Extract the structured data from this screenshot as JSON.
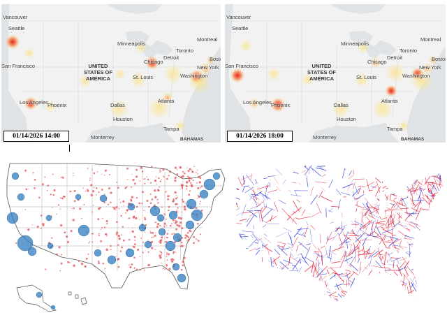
{
  "top_maps": [
    {
      "timestamp": "01/14/2026 14:00",
      "labels": {
        "vancouver": "Vancouver",
        "seattle": "Seattle",
        "san_francisco": "San Francisco",
        "los_angeles": "Los Angeles",
        "phoenix": "Phoenix",
        "minneapolis": "Minneapolis",
        "chicago": "Chicago",
        "detroit": "Detroit",
        "toronto": "Toronto",
        "montreal": "Montreal",
        "boston": "Boston",
        "new_york": "New York",
        "washington": "Washington",
        "st_louis": "St. Louis",
        "dallas": "Dallas",
        "atlanta": "Atlanta",
        "houston": "Houston",
        "tampa": "Tampa",
        "monterrey": "Monterrey",
        "bahamas": "BAHAMAS",
        "country_line1": "UNITED",
        "country_line2": "STATES OF",
        "country_line3": "AMERICA"
      }
    },
    {
      "timestamp": "01/14/2026 18:00",
      "labels": {
        "vancouver": "Vancouver",
        "seattle": "Seattle",
        "san_francisco": "San Francisco",
        "los_angeles": "Los Angeles",
        "phoenix": "Phoenix",
        "minneapolis": "Minneapolis",
        "chicago": "Chicago",
        "detroit": "Detroit",
        "toronto": "Toronto",
        "montreal": "Montreal",
        "boston": "Boston",
        "new_york": "New York",
        "washington": "Washington",
        "st_louis": "St. Louis",
        "dallas": "Dallas",
        "atlanta": "Atlanta",
        "houston": "Houston",
        "tampa": "Tampa",
        "monterrey": "Monterrey",
        "bahamas": "BAHAMAS",
        "country_line1": "UNITED",
        "country_line2": "STATES OF",
        "country_line3": "AMERICA"
      }
    }
  ],
  "colors": {
    "land": "#f2f2f2",
    "water": "#dfe3e6",
    "heat_hot": "#e8231a",
    "heat_warm": "#f7a35c",
    "heat_mild": "#fbe38a",
    "bubble_blue": "#2f7bbf",
    "bubble_red": "#e0474c",
    "network_red": "#e3102a",
    "network_blue": "#2b3bd9"
  }
}
